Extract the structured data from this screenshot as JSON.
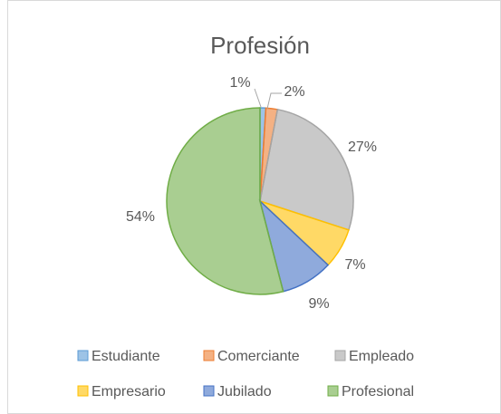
{
  "chart_data": {
    "type": "pie",
    "title": "Profesión",
    "categories": [
      "Estudiante",
      "Comerciante",
      "Empleado",
      "Empresario",
      "Jubilado",
      "Profesional"
    ],
    "values": [
      1,
      2,
      27,
      7,
      9,
      54
    ],
    "value_labels": [
      "1%",
      "2%",
      "27%",
      "7%",
      "9%",
      "54%"
    ],
    "colors": [
      "#5b9bd5",
      "#ed7d31",
      "#a5a5a5",
      "#ffc000",
      "#4472c4",
      "#70ad47"
    ],
    "legend": "bottom"
  }
}
